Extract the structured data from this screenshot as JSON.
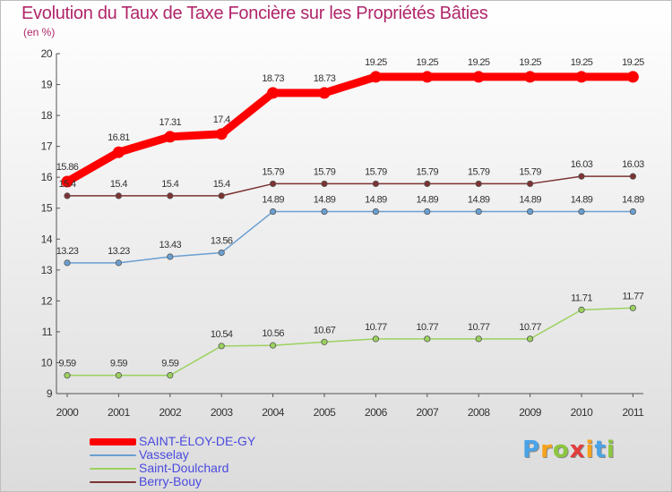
{
  "chart_data": {
    "type": "line",
    "title": "Evolution du Taux de Taxe Foncière sur les Propriétés Bâties",
    "subtitle": "(en %)",
    "categories": [
      "2000",
      "2001",
      "2002",
      "2003",
      "2004",
      "2005",
      "2006",
      "2007",
      "2008",
      "2009",
      "2010",
      "2011"
    ],
    "ylim": [
      9,
      20
    ],
    "yticks": [
      "9",
      "10",
      "11",
      "12",
      "13",
      "14",
      "15",
      "16",
      "17",
      "18",
      "19",
      "20"
    ],
    "grid": false,
    "legend_position": "bottom-left",
    "series": [
      {
        "name": "SAINT-ÉLOY-DE-GY",
        "color": "#ff0000",
        "values": [
          15.86,
          16.81,
          17.31,
          17.4,
          18.73,
          18.73,
          19.25,
          19.25,
          19.25,
          19.25,
          19.25,
          19.25
        ],
        "labels": [
          "15.86",
          "16.81",
          "17.31",
          "17.4",
          "18.73",
          "18.73",
          "19.25",
          "19.25",
          "19.25",
          "19.25",
          "19.25",
          "19.25"
        ]
      },
      {
        "name": "Vasselay",
        "color": "#6a9fd2",
        "values": [
          13.23,
          13.23,
          13.43,
          13.56,
          14.89,
          14.89,
          14.89,
          14.89,
          14.89,
          14.89,
          14.89,
          14.89
        ],
        "labels": [
          "13.23",
          "13.23",
          "13.43",
          "13.56",
          "14.89",
          "14.89",
          "14.89",
          "14.89",
          "14.89",
          "14.89",
          "14.89",
          "14.89"
        ]
      },
      {
        "name": "Saint-Doulchard",
        "color": "#9bd25e",
        "values": [
          9.59,
          9.59,
          9.59,
          10.54,
          10.56,
          10.67,
          10.77,
          10.77,
          10.77,
          10.77,
          11.71,
          11.77
        ],
        "labels": [
          "9.59",
          "9.59",
          "9.59",
          "10.54",
          "10.56",
          "10.67",
          "10.77",
          "10.77",
          "10.77",
          "10.77",
          "11.71",
          "11.77"
        ]
      },
      {
        "name": "Berry-Bouy",
        "color": "#7e3232",
        "values": [
          15.4,
          15.4,
          15.4,
          15.4,
          15.79,
          15.79,
          15.79,
          15.79,
          15.79,
          15.79,
          16.03,
          16.03
        ],
        "labels": [
          "15.4",
          "15.4",
          "15.4",
          "15.4",
          "15.79",
          "15.79",
          "15.79",
          "15.79",
          "15.79",
          "15.79",
          "16.03",
          "16.03"
        ]
      }
    ]
  },
  "brand": {
    "letters": [
      "P",
      "r",
      "o",
      "x",
      "i",
      "t",
      "i"
    ],
    "colors": [
      "#4aa3e6",
      "#f7a21b",
      "#8dc63f",
      "#e23c3c",
      "#f7a21b",
      "#4aa3e6",
      "#8dc63f"
    ]
  }
}
